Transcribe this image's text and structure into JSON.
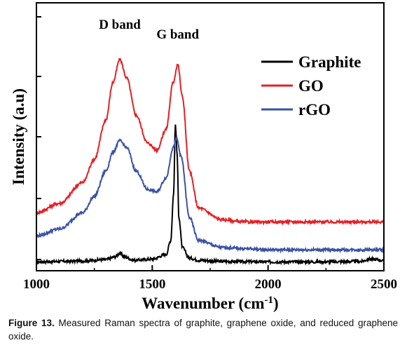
{
  "chart_data": {
    "type": "line",
    "xlabel": "Wavenumber (cm",
    "xlabel_superscript": "-1",
    "xlabel_close": ")",
    "ylabel": "Intensity (a.u)",
    "xlim": [
      1000,
      2500
    ],
    "ylim": [
      0,
      1
    ],
    "x_ticks": [
      1000,
      1500,
      2000,
      2500
    ],
    "x_tick_labels": [
      "1000",
      "1500",
      "2000",
      "2500"
    ],
    "y_tick_labels_shown": false,
    "legend_position": "top-right",
    "annotations": [
      {
        "text": "D band",
        "x": 1360
      },
      {
        "text": "G band",
        "x": 1610
      }
    ],
    "series": [
      {
        "name": "Graphite",
        "color": "#000000",
        "x": [
          1000,
          1100,
          1200,
          1300,
          1340,
          1360,
          1380,
          1420,
          1500,
          1560,
          1580,
          1592,
          1600,
          1607,
          1615,
          1630,
          1660,
          1700,
          1800,
          2000,
          2200,
          2400,
          2440,
          2470,
          2500
        ],
        "y": [
          0.008,
          0.01,
          0.012,
          0.018,
          0.03,
          0.045,
          0.03,
          0.015,
          0.02,
          0.04,
          0.1,
          0.3,
          0.6,
          0.48,
          0.2,
          0.07,
          0.025,
          0.015,
          0.01,
          0.008,
          0.008,
          0.01,
          0.02,
          0.018,
          0.012
        ]
      },
      {
        "name": "GO",
        "color": "#e32026",
        "x": [
          1000,
          1100,
          1200,
          1250,
          1300,
          1330,
          1360,
          1390,
          1430,
          1480,
          1520,
          1560,
          1590,
          1610,
          1630,
          1660,
          1700,
          1800,
          1900,
          2000,
          2200,
          2400,
          2500
        ],
        "y": [
          0.22,
          0.26,
          0.35,
          0.45,
          0.62,
          0.78,
          0.88,
          0.8,
          0.64,
          0.52,
          0.49,
          0.58,
          0.78,
          0.86,
          0.72,
          0.4,
          0.24,
          0.19,
          0.18,
          0.18,
          0.18,
          0.18,
          0.18
        ]
      },
      {
        "name": "rGO",
        "color": "#3a52a3",
        "x": [
          1000,
          1100,
          1200,
          1250,
          1300,
          1330,
          1360,
          1390,
          1430,
          1480,
          1520,
          1560,
          1590,
          1605,
          1625,
          1660,
          1700,
          1800,
          1900,
          2000,
          2200,
          2400,
          2500
        ],
        "y": [
          0.12,
          0.15,
          0.22,
          0.29,
          0.4,
          0.48,
          0.53,
          0.5,
          0.4,
          0.32,
          0.31,
          0.37,
          0.5,
          0.54,
          0.46,
          0.2,
          0.1,
          0.07,
          0.065,
          0.06,
          0.06,
          0.06,
          0.06
        ]
      }
    ]
  },
  "caption": {
    "label": "Figure 13.",
    "text": " Measured Raman spectra of graphite, graphene oxide, and reduced graphene oxide."
  }
}
